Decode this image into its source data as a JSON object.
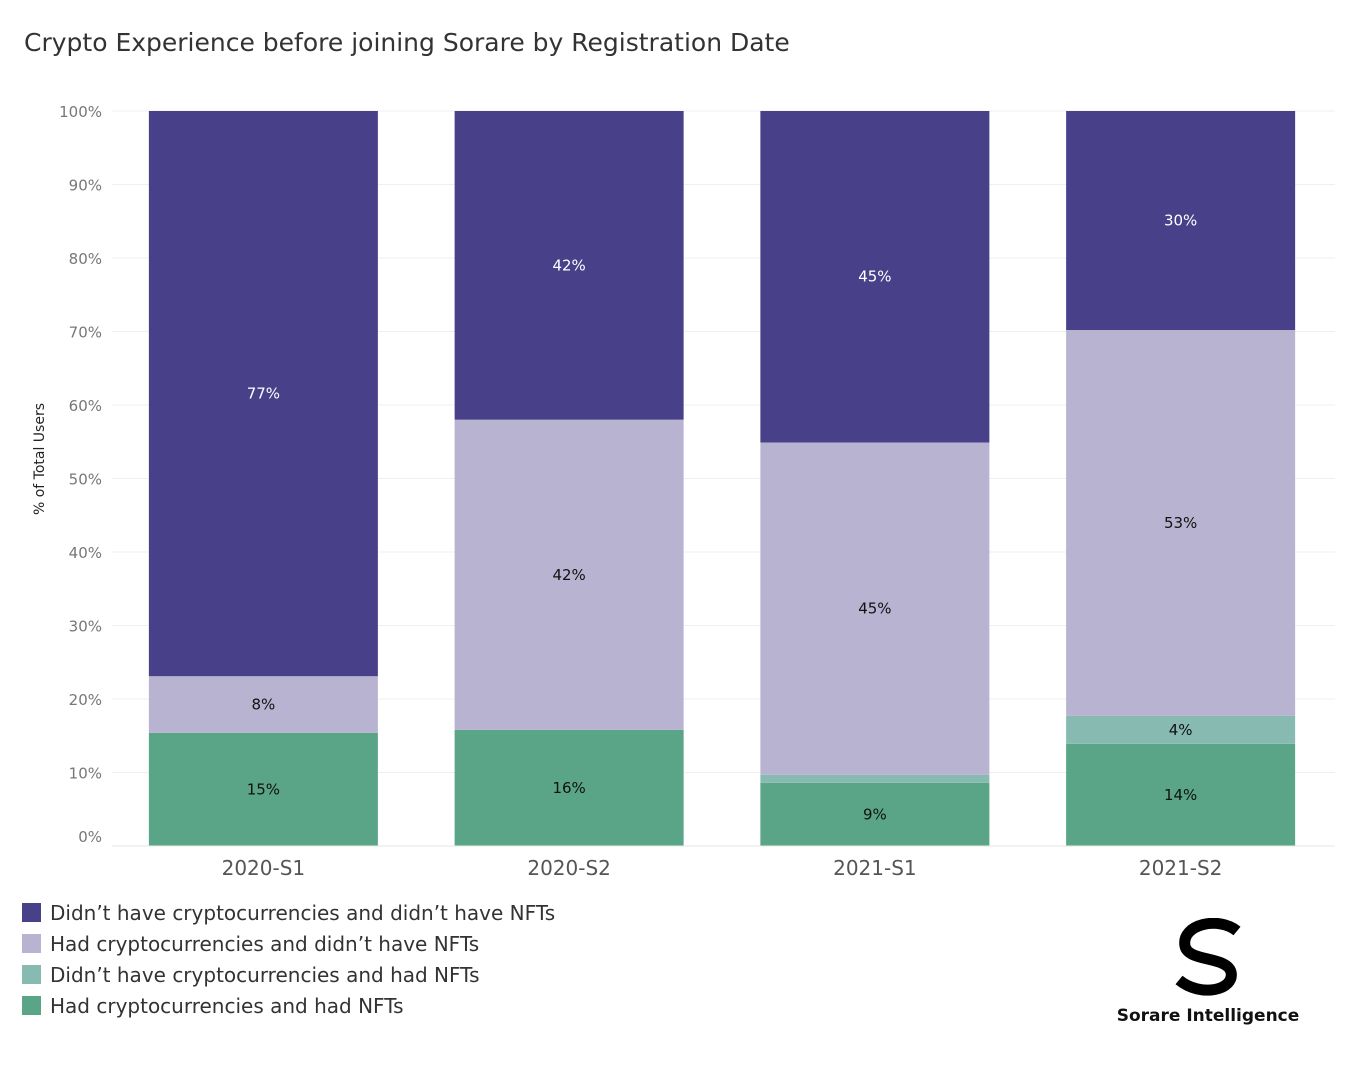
{
  "chart_data": {
    "type": "bar",
    "stacked": true,
    "title": "Crypto Experience before joining Sorare by Registration Date",
    "xlabel": "",
    "ylabel": "% of Total Users",
    "ylim": [
      0,
      100
    ],
    "yticks": [
      "0%",
      "10%",
      "20%",
      "30%",
      "40%",
      "50%",
      "60%",
      "70%",
      "80%",
      "90%",
      "100%"
    ],
    "grid": true,
    "legend_position": "bottom-left",
    "categories": [
      "2020-S1",
      "2020-S2",
      "2021-S1",
      "2021-S2"
    ],
    "series": [
      {
        "name": "Had cryptocurrencies and had NFTs",
        "color": "#5aa587",
        "values": [
          15.4,
          15.8,
          8.6,
          13.9
        ],
        "labels": [
          "15%",
          "16%",
          "9%",
          "14%"
        ],
        "label_color": "#111111"
      },
      {
        "name": "Didn’t have cryptocurrencies and had NFTs",
        "color": "#87bbb1",
        "values": [
          0,
          0,
          1.1,
          3.8
        ],
        "labels": [
          "",
          "",
          "",
          "4%"
        ],
        "label_color": "#111111"
      },
      {
        "name": "Had cryptocurrencies and didn’t have NFTs",
        "color": "#b8b3d1",
        "values": [
          7.7,
          42.2,
          45.2,
          52.5
        ],
        "labels": [
          "8%",
          "42%",
          "45%",
          "53%"
        ],
        "label_color": "#111111"
      },
      {
        "name": "Didn’t have cryptocurrencies and didn’t have NFTs",
        "color": "#484189",
        "values": [
          76.9,
          42.0,
          45.1,
          29.8
        ],
        "labels": [
          "77%",
          "42%",
          "45%",
          "30%"
        ],
        "label_color": "#ffffff"
      }
    ]
  },
  "legend_order": [
    3,
    2,
    1,
    0
  ],
  "brand": {
    "name": "Sorare Intelligence"
  }
}
